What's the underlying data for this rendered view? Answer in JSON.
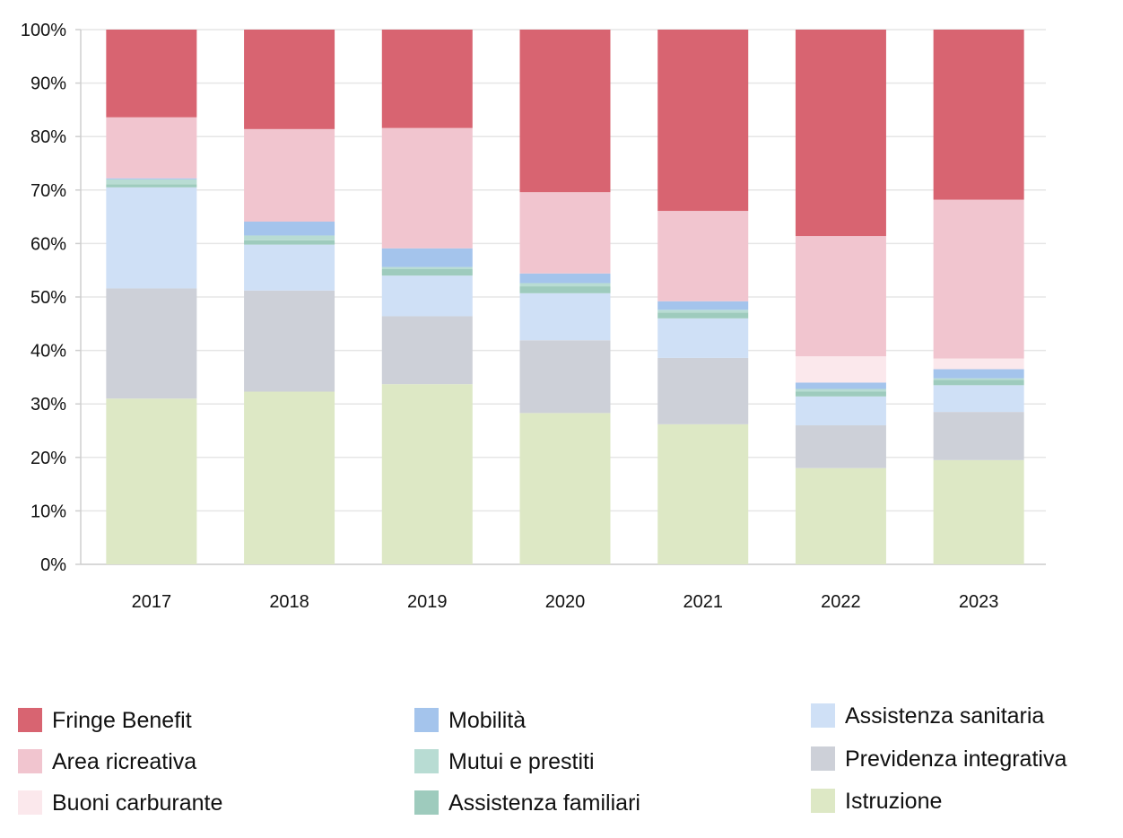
{
  "chart_data": {
    "type": "bar",
    "stacked": true,
    "normalized": true,
    "categories": [
      "2017",
      "2018",
      "2019",
      "2020",
      "2021",
      "2022",
      "2023"
    ],
    "ylim": [
      0,
      100
    ],
    "yticks": [
      "0%",
      "10%",
      "20%",
      "30%",
      "40%",
      "50%",
      "60%",
      "70%",
      "80%",
      "90%",
      "100%"
    ],
    "grid": true,
    "legend_position": "bottom",
    "series": [
      {
        "name": "Istruzione",
        "color": "#dde8c5",
        "values": [
          31.0,
          32.3,
          33.7,
          28.3,
          26.2,
          18.0,
          19.5
        ]
      },
      {
        "name": "Previdenza integrativa",
        "color": "#cdd0d8",
        "values": [
          20.6,
          18.9,
          12.7,
          13.6,
          12.4,
          8.0,
          9.0
        ]
      },
      {
        "name": "Assistenza sanitaria",
        "color": "#cfe0f6",
        "values": [
          18.9,
          8.6,
          7.6,
          8.8,
          7.4,
          5.4,
          5.0
        ]
      },
      {
        "name": "Assistenza familiari",
        "color": "#9ecbbd",
        "values": [
          0.6,
          0.8,
          1.2,
          1.3,
          1.1,
          0.9,
          1.0
        ]
      },
      {
        "name": "Mutui e prestiti",
        "color": "#b8dcd3",
        "values": [
          0.9,
          0.9,
          0.4,
          0.6,
          0.5,
          0.5,
          0.3
        ]
      },
      {
        "name": "Mobilità",
        "color": "#a4c4ec",
        "values": [
          0.2,
          2.6,
          3.5,
          1.8,
          1.6,
          1.2,
          1.7
        ]
      },
      {
        "name": "Buoni carburante",
        "color": "#fbe8ec",
        "values": [
          0.0,
          0.0,
          0.0,
          0.0,
          0.0,
          4.9,
          2.0
        ]
      },
      {
        "name": "Area ricreativa",
        "color": "#f1c5cf",
        "values": [
          11.4,
          17.3,
          22.5,
          15.2,
          16.9,
          22.5,
          29.7
        ]
      },
      {
        "name": "Fringe Benefit",
        "color": "#d86471",
        "values": [
          16.4,
          18.6,
          18.4,
          30.4,
          33.9,
          38.6,
          31.8
        ]
      }
    ],
    "legend_order": [
      "Fringe Benefit",
      "Area ricreativa",
      "Buoni carburante",
      "Mobilità",
      "Mutui e prestiti",
      "Assistenza familiari",
      "Assistenza sanitaria",
      "Previdenza integrativa",
      "Istruzione"
    ]
  }
}
